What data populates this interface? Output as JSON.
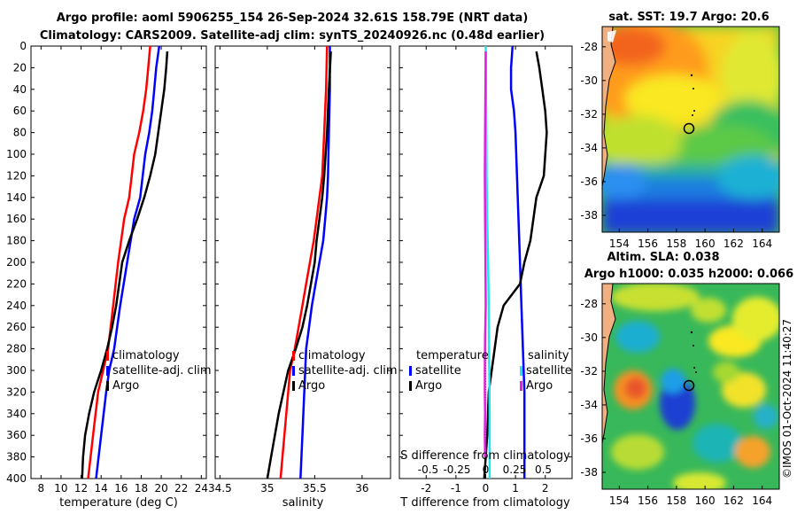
{
  "title_line1": "Argo profile: aoml 5906255_154 26-Sep-2024 32.61S 158.79E (NRT data)",
  "title_line2": "Climatology: CARS2009. Satellite-adj clim: synTS_20240926.nc (0.48d earlier)",
  "credit": "©IMOS 01-Oct-2024 11:40:27",
  "colors": {
    "red": "#ff0000",
    "blue": "#0000ff",
    "black": "#000000",
    "cyan": "#22e5ef",
    "magenta": "#e11ee1"
  },
  "chart_data": [
    {
      "type": "line",
      "id": "temperature",
      "xlabel": "temperature (deg C)",
      "xlim": [
        7,
        24.5
      ],
      "xticks": [
        8,
        10,
        12,
        14,
        16,
        18,
        20,
        22,
        24
      ],
      "xtick_labels": [
        "8",
        "10",
        "12",
        "14",
        "16",
        "18",
        "20",
        "22",
        "24"
      ],
      "ylim": [
        0,
        400
      ],
      "yticks": [
        0,
        20,
        40,
        60,
        80,
        100,
        120,
        140,
        160,
        180,
        200,
        220,
        240,
        260,
        280,
        300,
        320,
        340,
        360,
        380,
        400
      ],
      "ytick_labels": [
        "0",
        "20",
        "40",
        "60",
        "80",
        "100",
        "120",
        "140",
        "160",
        "180",
        "200",
        "220",
        "240",
        "260",
        "280",
        "300",
        "320",
        "340",
        "360",
        "380",
        "400"
      ],
      "legend": [
        {
          "label": "climatology",
          "color": "red"
        },
        {
          "label": "satellite-adj. clim",
          "color": "blue"
        },
        {
          "label": "Argo",
          "color": "black"
        }
      ],
      "series": [
        {
          "name": "climatology",
          "color": "red",
          "x": [
            18.9,
            18.7,
            18.5,
            18.2,
            17.8,
            17.3,
            16.8,
            16.3,
            15.7,
            15.2,
            14.7,
            14.2,
            13.7,
            13.2,
            12.7
          ],
          "depth": [
            0,
            20,
            40,
            60,
            80,
            100,
            140,
            160,
            200,
            240,
            280,
            300,
            320,
            360,
            400
          ]
        },
        {
          "name": "satellite-adj. clim",
          "color": "blue",
          "x": [
            19.8,
            19.5,
            19.3,
            19.1,
            18.8,
            18.4,
            17.9,
            17.3,
            16.6,
            15.9,
            15.3,
            14.8,
            14.5,
            14.0,
            13.5
          ],
          "depth": [
            0,
            20,
            40,
            60,
            80,
            100,
            140,
            160,
            200,
            240,
            280,
            300,
            320,
            360,
            400
          ]
        },
        {
          "name": "Argo",
          "color": "black",
          "x": [
            20.6,
            20.5,
            20.3,
            20.0,
            19.7,
            19.4,
            18.9,
            18.3,
            17.6,
            16.8,
            16.1,
            15.5,
            15.1,
            14.6,
            14.0,
            13.3,
            12.8,
            12.4,
            12.2,
            12.1
          ],
          "depth": [
            5,
            20,
            40,
            60,
            80,
            100,
            120,
            140,
            160,
            180,
            200,
            240,
            260,
            280,
            300,
            320,
            340,
            360,
            380,
            400
          ]
        }
      ]
    },
    {
      "type": "line",
      "id": "salinity",
      "xlabel": "salinity",
      "xlim": [
        34.45,
        36.3
      ],
      "xticks": [
        34.5,
        35,
        35.5,
        36
      ],
      "xtick_labels": [
        "34.5",
        "35",
        "35.5",
        "36"
      ],
      "ylim": [
        0,
        400
      ],
      "legend": [
        {
          "label": "climatology",
          "color": "red"
        },
        {
          "label": "satellite-adj. clim",
          "color": "blue"
        },
        {
          "label": "Argo",
          "color": "black"
        }
      ],
      "series": [
        {
          "name": "climatology",
          "color": "red",
          "x": [
            35.63,
            35.62,
            35.6,
            35.58,
            35.55,
            35.52,
            35.49,
            35.45,
            35.41,
            35.37,
            35.33,
            35.29,
            35.24,
            35.2,
            35.14
          ],
          "depth": [
            0,
            40,
            80,
            120,
            140,
            160,
            180,
            200,
            220,
            240,
            260,
            280,
            300,
            340,
            400
          ]
        },
        {
          "name": "satellite-adj. clim",
          "color": "blue",
          "x": [
            35.66,
            35.66,
            35.65,
            35.64,
            35.63,
            35.61,
            35.59,
            35.55,
            35.51,
            35.47,
            35.44,
            35.41,
            35.39,
            35.37,
            35.35
          ],
          "depth": [
            0,
            40,
            80,
            120,
            140,
            160,
            180,
            200,
            220,
            240,
            260,
            280,
            320,
            360,
            400
          ]
        },
        {
          "name": "Argo",
          "color": "black",
          "x": [
            35.67,
            35.65,
            35.63,
            35.6,
            35.58,
            35.55,
            35.52,
            35.5,
            35.46,
            35.42,
            35.37,
            35.3,
            35.22,
            35.12,
            35.04,
            35.0
          ],
          "depth": [
            5,
            40,
            80,
            120,
            140,
            160,
            180,
            200,
            220,
            240,
            260,
            280,
            300,
            340,
            380,
            400
          ]
        }
      ]
    },
    {
      "type": "line",
      "id": "difference",
      "xlabel": "T difference from climatology",
      "top_xlabel": "S difference from climatology",
      "xlim": [
        -2.9,
        2.9
      ],
      "xticks": [
        -2,
        -1,
        0,
        1,
        2
      ],
      "xtick_labels": [
        "-2",
        "-1",
        "0",
        "1",
        "2"
      ],
      "s_xticks": [
        -0.5,
        -0.25,
        0,
        0.25,
        0.5
      ],
      "s_xtick_labels": [
        "-0.5",
        "-0.25",
        "0",
        "0.25",
        "0.5"
      ],
      "ylim": [
        0,
        400
      ],
      "legend_left_title": "temperature",
      "legend_right_title": "salinity",
      "legend_left": [
        {
          "label": "satellite",
          "color": "blue"
        },
        {
          "label": "Argo",
          "color": "black"
        }
      ],
      "legend_right": [
        {
          "label": "satellite",
          "color": "cyan"
        },
        {
          "label": "Argo",
          "color": "magenta"
        }
      ],
      "series": [
        {
          "name": "temperature satellite",
          "color": "blue",
          "x": [
            0.9,
            0.85,
            0.85,
            0.95,
            1.0,
            1.05,
            1.1,
            1.15,
            1.2,
            1.25,
            1.3,
            1.3,
            1.3
          ],
          "depth": [
            0,
            20,
            40,
            60,
            80,
            120,
            160,
            200,
            240,
            280,
            320,
            360,
            400
          ]
        },
        {
          "name": "temperature Argo",
          "color": "black",
          "x": [
            1.7,
            1.8,
            1.9,
            2.0,
            2.05,
            1.95,
            1.7,
            1.6,
            1.5,
            1.3,
            1.15,
            0.6,
            0.4,
            0.3,
            0.1,
            0.05,
            -0.05
          ],
          "depth": [
            5,
            20,
            40,
            60,
            80,
            120,
            140,
            160,
            180,
            200,
            220,
            240,
            260,
            280,
            320,
            360,
            400
          ]
        },
        {
          "name": "salinity satellite",
          "color": "cyan",
          "x": [
            0.0,
            0.01,
            0.02,
            0.03,
            0.05,
            0.08,
            0.1,
            0.11,
            0.12,
            0.13,
            0.13,
            0.13
          ],
          "depth": [
            0,
            40,
            80,
            120,
            160,
            200,
            240,
            280,
            300,
            340,
            380,
            400
          ]
        },
        {
          "name": "salinity Argo",
          "color": "magenta",
          "x": [
            0.0,
            -0.01,
            -0.02,
            -0.03,
            -0.02,
            -0.01,
            0.0,
            -0.02,
            -0.03,
            -0.03,
            -0.02,
            -0.03,
            -0.02
          ],
          "depth": [
            5,
            40,
            80,
            120,
            160,
            200,
            240,
            270,
            300,
            320,
            340,
            360,
            380
          ]
        }
      ]
    },
    {
      "type": "heatmap",
      "id": "sst_map",
      "title": "sat. SST: 19.7 Argo: 20.6",
      "xlim": [
        152.8,
        165.2
      ],
      "ylim": [
        -39,
        -26.8
      ],
      "xticks": [
        154,
        156,
        158,
        160,
        162,
        164
      ],
      "xtick_labels": [
        "154",
        "156",
        "158",
        "160",
        "162",
        "164"
      ],
      "yticks": [
        -28,
        -30,
        -32,
        -34,
        -36,
        -38
      ],
      "ytick_labels": [
        "-28",
        "-30",
        "-32",
        "-34",
        "-36",
        "-38"
      ],
      "float_position": [
        158.79,
        -32.61
      ]
    },
    {
      "type": "heatmap",
      "id": "sla_map",
      "title_line1": "Altim. SLA: 0.038",
      "title_line2": "Argo h1000: 0.035 h2000: 0.066",
      "xlim": [
        152.8,
        165.2
      ],
      "ylim": [
        -39,
        -26.8
      ],
      "xticks": [
        154,
        156,
        158,
        160,
        162,
        164
      ],
      "xtick_labels": [
        "154",
        "156",
        "158",
        "160",
        "162",
        "164"
      ],
      "yticks": [
        -28,
        -30,
        -32,
        -34,
        -36,
        -38
      ],
      "ytick_labels": [
        "-28",
        "-30",
        "-32",
        "-34",
        "-36",
        "-38"
      ],
      "float_position": [
        158.79,
        -32.61
      ]
    }
  ]
}
